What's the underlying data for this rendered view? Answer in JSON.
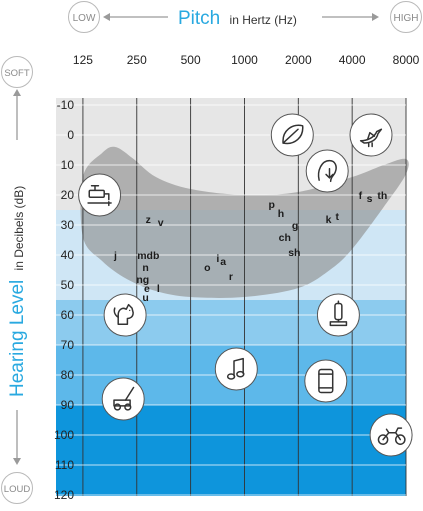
{
  "header": {
    "low": "LOW",
    "high": "HIGH",
    "pitch": "Pitch",
    "pitch_unit": "in Hertz (Hz)"
  },
  "side": {
    "soft": "SOFT",
    "loud": "LOUD",
    "level": "Hearing Level",
    "level_unit": "in Decibels (dB)"
  },
  "colors": {
    "accent": "#29a9e0",
    "band_light": "#cfe6f5",
    "band_mid": "#8ccbee",
    "band_strong": "#5db8ea",
    "band_deep": "#0e95dc",
    "band_top": "#e6e6e6",
    "banana": "#8d8d8d",
    "grid": "#333333"
  },
  "chart_data": {
    "type": "audiogram",
    "x_scale": "log2",
    "x_ticks": [
      125,
      250,
      500,
      1000,
      2000,
      4000,
      8000
    ],
    "y_ticks": [
      -10,
      0,
      10,
      20,
      30,
      40,
      50,
      60,
      70,
      80,
      90,
      100,
      110,
      120
    ],
    "ylim": [
      -10,
      120
    ],
    "y_inverted": true,
    "bands": [
      {
        "from": -10,
        "to": 25,
        "color": "#e6e6e6"
      },
      {
        "from": 25,
        "to": 55,
        "color": "#cfe6f5"
      },
      {
        "from": 55,
        "to": 70,
        "color": "#8ccbee"
      },
      {
        "from": 70,
        "to": 90,
        "color": "#5db8ea"
      },
      {
        "from": 90,
        "to": 120,
        "color": "#0e95dc"
      }
    ],
    "speech_banana": {
      "upper": [
        [
          125,
          14
        ],
        [
          160,
          6
        ],
        [
          190,
          4
        ],
        [
          240,
          8
        ],
        [
          320,
          14
        ],
        [
          500,
          18
        ],
        [
          1000,
          20
        ],
        [
          2000,
          19
        ],
        [
          4000,
          14
        ],
        [
          6000,
          10
        ],
        [
          8000,
          8
        ]
      ],
      "lower": [
        [
          8000,
          13
        ],
        [
          6000,
          24
        ],
        [
          4000,
          38
        ],
        [
          3000,
          45
        ],
        [
          2000,
          51
        ],
        [
          1000,
          54
        ],
        [
          500,
          54
        ],
        [
          320,
          52
        ],
        [
          220,
          48
        ],
        [
          160,
          42
        ],
        [
          125,
          34
        ]
      ]
    },
    "speech_sounds": [
      {
        "label": "z",
        "hz": 290,
        "db": 28
      },
      {
        "label": "v",
        "hz": 340,
        "db": 29
      },
      {
        "label": "j",
        "hz": 190,
        "db": 40
      },
      {
        "label": "mdb",
        "hz": 290,
        "db": 40
      },
      {
        "label": "n",
        "hz": 280,
        "db": 44
      },
      {
        "label": "ng",
        "hz": 270,
        "db": 48
      },
      {
        "label": "e",
        "hz": 285,
        "db": 51
      },
      {
        "label": "l",
        "hz": 330,
        "db": 51
      },
      {
        "label": "u",
        "hz": 280,
        "db": 54
      },
      {
        "label": "o",
        "hz": 620,
        "db": 44
      },
      {
        "label": "i",
        "hz": 710,
        "db": 41
      },
      {
        "label": "a",
        "hz": 760,
        "db": 42
      },
      {
        "label": "r",
        "hz": 840,
        "db": 47
      },
      {
        "label": "p",
        "hz": 1420,
        "db": 23
      },
      {
        "label": "h",
        "hz": 1600,
        "db": 26
      },
      {
        "label": "g",
        "hz": 1920,
        "db": 30
      },
      {
        "label": "ch",
        "hz": 1680,
        "db": 34
      },
      {
        "label": "sh",
        "hz": 1900,
        "db": 39
      },
      {
        "label": "k",
        "hz": 2950,
        "db": 28
      },
      {
        "label": "t",
        "hz": 3300,
        "db": 27
      },
      {
        "label": "f",
        "hz": 4450,
        "db": 20
      },
      {
        "label": "s",
        "hz": 5000,
        "db": 21
      },
      {
        "label": "th",
        "hz": 5900,
        "db": 20
      }
    ],
    "icons": [
      {
        "name": "leaf-icon",
        "hz": 1850,
        "db": 0
      },
      {
        "name": "bird-icon",
        "hz": 5100,
        "db": 0
      },
      {
        "name": "faucet-icon",
        "hz": 155,
        "db": 20
      },
      {
        "name": "whisper-icon",
        "hz": 2900,
        "db": 12
      },
      {
        "name": "dog-icon",
        "hz": 215,
        "db": 60
      },
      {
        "name": "vacuum-icon",
        "hz": 3350,
        "db": 60
      },
      {
        "name": "music-note-icon",
        "hz": 900,
        "db": 78
      },
      {
        "name": "phone-icon",
        "hz": 2850,
        "db": 82
      },
      {
        "name": "lawnmower-icon",
        "hz": 210,
        "db": 88
      },
      {
        "name": "motorcycle-icon",
        "hz": 6600,
        "db": 100
      }
    ]
  }
}
